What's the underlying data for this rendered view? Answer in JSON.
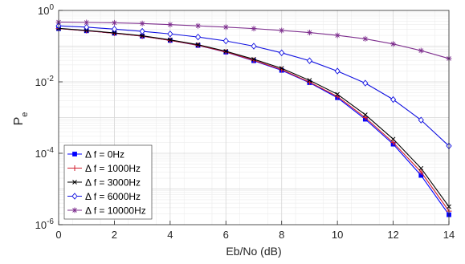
{
  "chart_data": {
    "type": "line",
    "title": "",
    "xlabel": "Eb/No (dB)",
    "ylabel": "P",
    "ylabel_subscript": "e",
    "xlim": [
      0,
      14
    ],
    "ylim": [
      1e-06,
      1
    ],
    "yscale": "log",
    "grid": true,
    "minor_grid": true,
    "legend_position": "bottom-left",
    "x_ticks": [
      0,
      2,
      4,
      6,
      8,
      10,
      12,
      14
    ],
    "x_tick_labels": [
      "0",
      "2",
      "4",
      "6",
      "8",
      "10",
      "12",
      "14"
    ],
    "y_ticks": [
      {
        "value": 1,
        "base": "10",
        "exp": "0"
      },
      {
        "value": 0.01,
        "base": "10",
        "exp": "-2"
      },
      {
        "value": 0.0001,
        "base": "10",
        "exp": "-4"
      },
      {
        "value": 1e-06,
        "base": "10",
        "exp": "-6"
      }
    ],
    "x": [
      0,
      1,
      2,
      3,
      4,
      5,
      6,
      7,
      8,
      9,
      10,
      11,
      12,
      13,
      14
    ],
    "series": [
      {
        "name": "Δ f = 0Hz",
        "color": "#0000ff",
        "marker": "square",
        "values": [
          0.31,
          0.27,
          0.23,
          0.19,
          0.145,
          0.105,
          0.068,
          0.039,
          0.021,
          0.0095,
          0.0036,
          0.0009,
          0.00018,
          2.4e-05,
          1.9e-06
        ]
      },
      {
        "name": "Δ f = 1000Hz",
        "color": "#d21e2e",
        "marker": "plus",
        "values": [
          0.31,
          0.27,
          0.23,
          0.19,
          0.145,
          0.106,
          0.069,
          0.04,
          0.022,
          0.0098,
          0.0039,
          0.001,
          0.0002,
          3e-05,
          2.4e-06
        ]
      },
      {
        "name": "Δ f = 3000Hz",
        "color": "#000000",
        "marker": "x",
        "values": [
          0.315,
          0.275,
          0.235,
          0.195,
          0.15,
          0.11,
          0.072,
          0.043,
          0.024,
          0.011,
          0.0045,
          0.0012,
          0.00025,
          3.8e-05,
          3.2e-06
        ]
      },
      {
        "name": "Δ f = 6000Hz",
        "color": "#1010e0",
        "marker": "diamond",
        "values": [
          0.37,
          0.34,
          0.3,
          0.26,
          0.22,
          0.18,
          0.14,
          0.1,
          0.065,
          0.039,
          0.02,
          0.0092,
          0.0032,
          0.00085,
          0.00016
        ]
      },
      {
        "name": "Δ f = 10000Hz",
        "color": "#7e2f8e",
        "marker": "star",
        "values": [
          0.47,
          0.46,
          0.45,
          0.43,
          0.4,
          0.37,
          0.34,
          0.31,
          0.275,
          0.24,
          0.2,
          0.16,
          0.115,
          0.075,
          0.045
        ]
      }
    ]
  }
}
